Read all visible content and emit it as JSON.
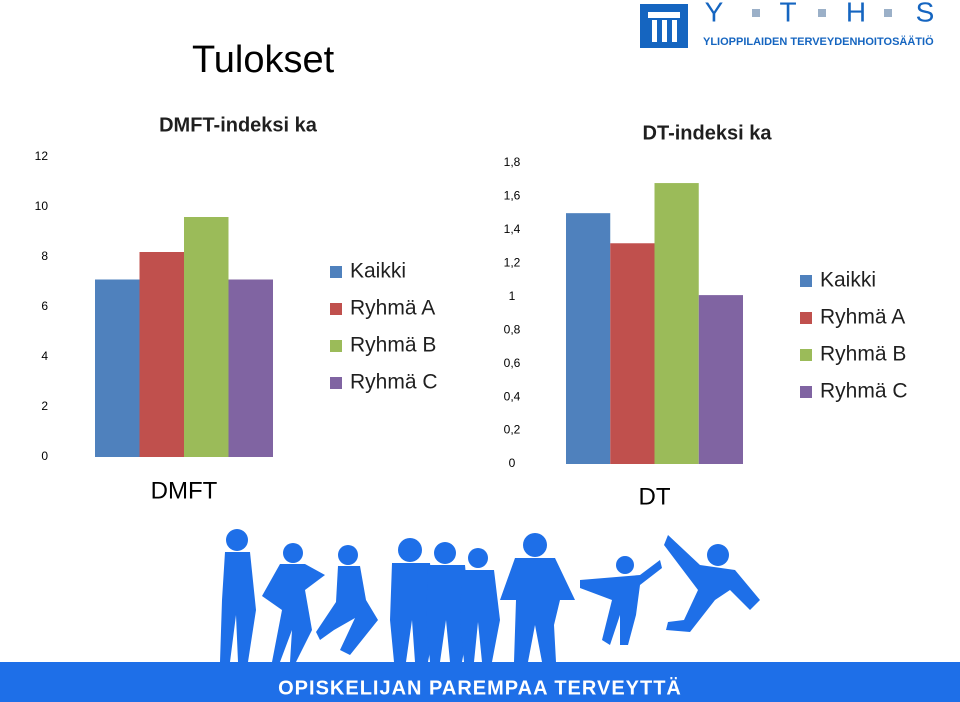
{
  "slide": {
    "title": "Tulokset",
    "logo_letters": [
      "Y",
      "T",
      "H",
      "S"
    ],
    "logo_subtitle": "YLIOPPILAIDEN TERVEYDENHOITOSÄÄTIÖ",
    "footer": "OPISKELIJAN PAREMPAA TERVEYTTÄ"
  },
  "chart_data": [
    {
      "type": "bar",
      "title": "DMFT-indeksi ka",
      "categories": [
        "DMFT"
      ],
      "series": [
        {
          "name": "Kaikki",
          "color": "#4f81bd",
          "values": [
            7.1
          ]
        },
        {
          "name": "Ryhmä A",
          "color": "#c0504d",
          "values": [
            8.2
          ]
        },
        {
          "name": "Ryhmä B",
          "color": "#9bbb59",
          "values": [
            9.6
          ]
        },
        {
          "name": "Ryhmä C",
          "color": "#8064a2",
          "values": [
            7.1
          ]
        }
      ],
      "ylim": [
        0,
        12
      ],
      "yticks": [
        0,
        2,
        4,
        6,
        8,
        10,
        12
      ],
      "grid": false,
      "legend": "right"
    },
    {
      "type": "bar",
      "title": "DT-indeksi ka",
      "categories": [
        "DT"
      ],
      "series": [
        {
          "name": "Kaikki",
          "color": "#4f81bd",
          "values": [
            1.5
          ]
        },
        {
          "name": "Ryhmä A",
          "color": "#c0504d",
          "values": [
            1.32
          ]
        },
        {
          "name": "Ryhmä B",
          "color": "#9bbb59",
          "values": [
            1.68
          ]
        },
        {
          "name": "Ryhmä C",
          "color": "#8064a2",
          "values": [
            1.01
          ]
        }
      ],
      "ylim": [
        0,
        1.8
      ],
      "yticks": [
        0,
        {
          "value": 0.2,
          "label": "0,2"
        },
        {
          "value": 0.4,
          "label": "0,4"
        },
        {
          "value": 0.6,
          "label": "0,6"
        },
        {
          "value": 0.8,
          "label": "0,8"
        },
        1,
        {
          "value": 1.2,
          "label": "1,2"
        },
        {
          "value": 1.4,
          "label": "1,4"
        },
        {
          "value": 1.6,
          "label": "1,6"
        },
        {
          "value": 1.8,
          "label": "1,8"
        }
      ],
      "grid": false,
      "legend": "right"
    }
  ]
}
